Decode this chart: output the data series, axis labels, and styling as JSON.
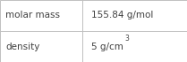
{
  "rows": [
    {
      "label": "molar mass",
      "value": "155.84 g/mol",
      "superscript": null
    },
    {
      "label": "density",
      "value": "5 g/cm",
      "superscript": "3"
    }
  ],
  "bg_color": "#ffffff",
  "border_color": "#c0c0c0",
  "text_color": "#404040",
  "label_fontsize": 7.5,
  "value_fontsize": 7.5,
  "sup_fontsize": 5.5,
  "col_split": 0.44,
  "figwidth": 2.09,
  "figheight": 0.7,
  "dpi": 100
}
